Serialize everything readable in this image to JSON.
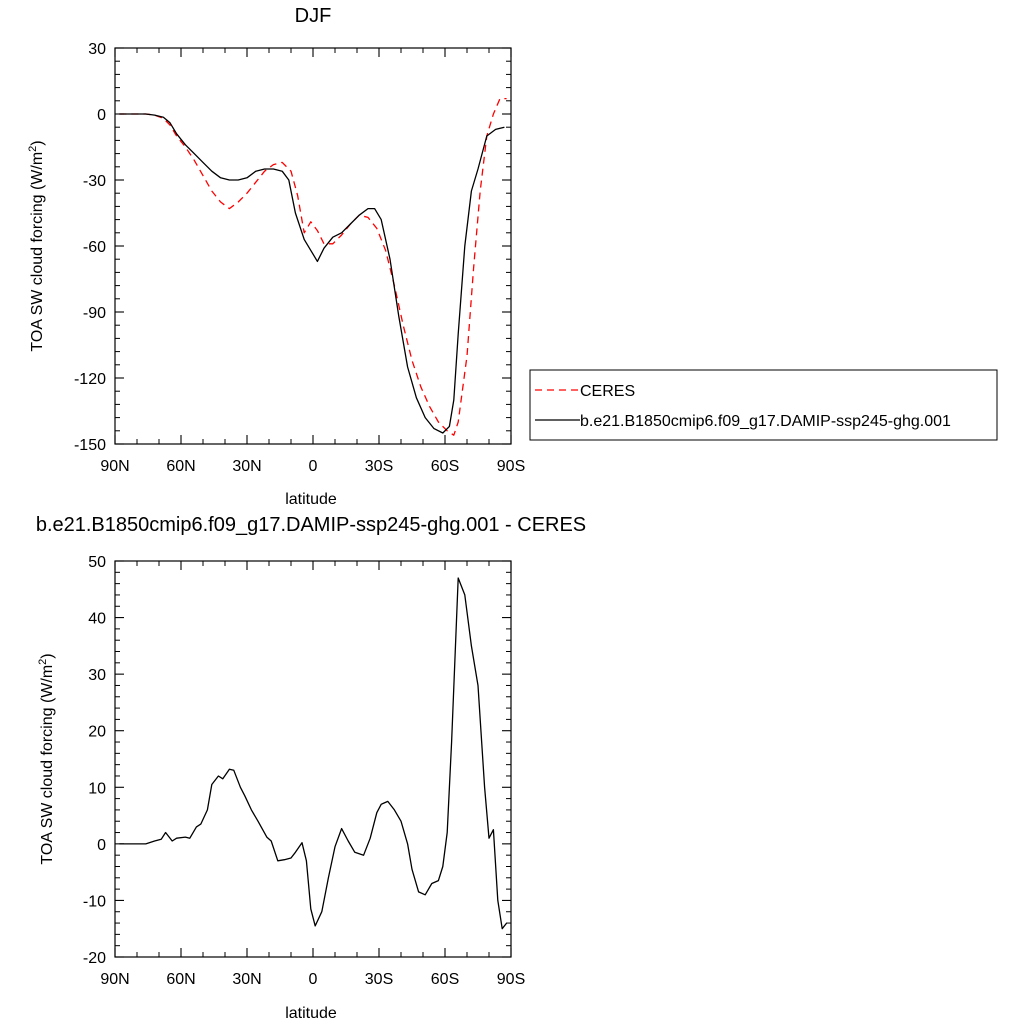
{
  "chart_data": [
    {
      "type": "line",
      "title": "DJF",
      "xlabel": "latitude",
      "ylabel": "TOA SW cloud forcing (W/m²)",
      "ylabel_main": "TOA SW cloud forcing (W/m",
      "ylabel_sup": "2",
      "ylabel_end": ")",
      "xlim": [
        90,
        -90
      ],
      "ylim": [
        -150,
        30
      ],
      "x_ticks": [
        90,
        60,
        30,
        0,
        -30,
        -60,
        -90
      ],
      "x_tick_labels": [
        "90N",
        "60N",
        "30N",
        "0",
        "30S",
        "60S",
        "90S"
      ],
      "y_ticks": [
        30,
        0,
        -30,
        -60,
        -90,
        -120,
        -150
      ],
      "y_tick_labels": [
        "30",
        "0",
        "-30",
        "-60",
        "-90",
        "-120",
        "-150"
      ],
      "legend": "right",
      "series": [
        {
          "name": "CERES",
          "color": "#ff0000",
          "dash": "dashed",
          "x": [
            88,
            84,
            80,
            76,
            72,
            68,
            65,
            62,
            58,
            54,
            50,
            46,
            42,
            38,
            34,
            30,
            26,
            22,
            18,
            14,
            10,
            7,
            4,
            1,
            -2,
            -5,
            -9,
            -13,
            -17,
            -21,
            -25,
            -29,
            -33,
            -37,
            -41,
            -45,
            -49,
            -53,
            -57,
            -61,
            -64,
            -66,
            -70,
            -73,
            -76,
            -79,
            -82,
            -85,
            -88
          ],
          "y": [
            0,
            0,
            0,
            0,
            -0.5,
            -2,
            -5,
            -10,
            -15,
            -21,
            -28,
            -35,
            -40,
            -43,
            -40,
            -36,
            -31,
            -26,
            -23,
            -22,
            -26,
            -37,
            -54,
            -49,
            -53,
            -59,
            -59,
            -55,
            -50,
            -46,
            -47,
            -52,
            -62,
            -78,
            -96,
            -112,
            -124,
            -133,
            -140,
            -144,
            -146,
            -140,
            -110,
            -70,
            -35,
            -10,
            0,
            7,
            7
          ]
        },
        {
          "name": "b.e21.B1850cmip6.f09_g17.DAMIP-ssp245-ghg.001",
          "color": "#000000",
          "dash": "solid",
          "x": [
            88,
            84,
            80,
            76,
            72,
            68,
            65,
            62,
            58,
            54,
            50,
            46,
            42,
            38,
            34,
            30,
            26,
            22,
            18,
            14,
            11,
            8,
            4,
            1,
            -2,
            -5,
            -9,
            -13,
            -17,
            -21,
            -25,
            -28,
            -31,
            -35,
            -39,
            -43,
            -47,
            -51,
            -55,
            -59,
            -62,
            -64,
            -66,
            -69,
            -72,
            -75,
            -79,
            -83,
            -87
          ],
          "y": [
            0,
            0,
            0,
            0,
            -0.5,
            -1.5,
            -4,
            -9,
            -14,
            -18,
            -22,
            -26,
            -29,
            -30,
            -30,
            -29,
            -26,
            -25,
            -25,
            -26,
            -30,
            -45,
            -57,
            -62,
            -67,
            -61,
            -56,
            -54,
            -50,
            -46,
            -43,
            -43,
            -48,
            -66,
            -92,
            -115,
            -129,
            -138,
            -143,
            -145,
            -142,
            -130,
            -100,
            -60,
            -35,
            -25,
            -10,
            -7,
            -6
          ]
        }
      ]
    },
    {
      "type": "line",
      "title": "b.e21.B1850cmip6.f09_g17.DAMIP-ssp245-ghg.001 - CERES",
      "xlabel": "latitude",
      "ylabel": "TOA SW cloud forcing (W/m²)",
      "ylabel_main": "TOA SW cloud forcing (W/m",
      "ylabel_sup": "2",
      "ylabel_end": ")",
      "xlim": [
        90,
        -90
      ],
      "ylim": [
        -20,
        50
      ],
      "x_ticks": [
        90,
        60,
        30,
        0,
        -30,
        -60,
        -90
      ],
      "x_tick_labels": [
        "90N",
        "60N",
        "30N",
        "0",
        "30S",
        "60S",
        "90S"
      ],
      "y_ticks": [
        50,
        40,
        30,
        20,
        10,
        0,
        -10,
        -20
      ],
      "y_tick_labels": [
        "50",
        "40",
        "30",
        "20",
        "10",
        "0",
        "-10",
        "-20"
      ],
      "series": [
        {
          "color": "#000000",
          "dash": "solid",
          "x": [
            88,
            84,
            80,
            76,
            72,
            69,
            67,
            64,
            62,
            58,
            56,
            53,
            51,
            48,
            46,
            43,
            41,
            38,
            36,
            33,
            31,
            28,
            25,
            21,
            19,
            16,
            13,
            10,
            8,
            5,
            3,
            1,
            -1,
            -4,
            -7,
            -10,
            -13,
            -16,
            -19,
            -23,
            -26,
            -29,
            -31,
            -34,
            -37,
            -40,
            -43,
            -45,
            -48,
            -51,
            -54,
            -57,
            -59,
            -61,
            -63,
            -66,
            -69,
            -72,
            -75,
            -78,
            -80,
            -82,
            -84,
            -86,
            -88
          ],
          "y": [
            0,
            0,
            0,
            0,
            0.5,
            0.8,
            2,
            0.5,
            1,
            1.2,
            1,
            3,
            3.5,
            6,
            10.5,
            12,
            11.5,
            13.2,
            13,
            10,
            8.5,
            6,
            4,
            1.2,
            0.5,
            -3,
            -2.8,
            -2.5,
            -1.5,
            0.2,
            -3,
            -11.5,
            -14.5,
            -12,
            -6,
            -0.5,
            2.7,
            0.5,
            -1.5,
            -2,
            1,
            5.5,
            7,
            7.5,
            6,
            4,
            0,
            -4.5,
            -8.5,
            -9,
            -7,
            -6.5,
            -4,
            2,
            18,
            47,
            44,
            35,
            28,
            10,
            1,
            2.5,
            -10,
            -15,
            -14
          ]
        }
      ]
    }
  ]
}
